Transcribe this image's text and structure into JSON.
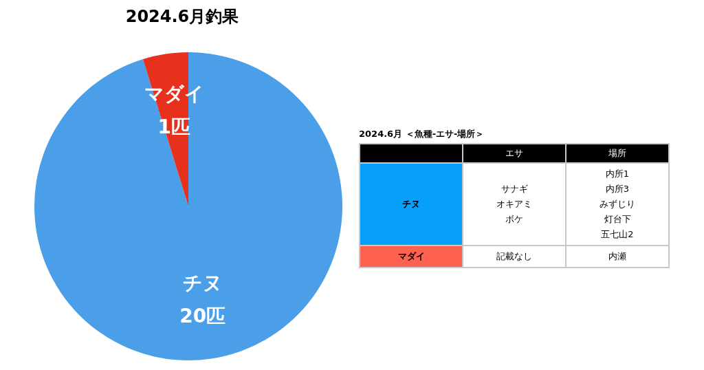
{
  "chart_data": [
    {
      "type": "pie",
      "title": "2024.6月釣果",
      "categories": [
        "チヌ",
        "マダイ"
      ],
      "values": [
        20,
        1
      ],
      "colors": [
        "#4a9fe8",
        "#e8311c"
      ],
      "value_labels": [
        "20匹",
        "1匹"
      ],
      "legend": false
    },
    {
      "type": "other",
      "title": "2024.6月 ＜魚種-エサ-場所＞",
      "categories": [
        "エサ",
        "場所"
      ],
      "y_categories": [
        "チヌ",
        "マダイ"
      ],
      "cell_labels": [
        [
          [
            "サナギ",
            "オキアミ",
            "ボケ"
          ],
          [
            "内所1",
            "内所3",
            "みずじり",
            "灯台下",
            "五七山2"
          ]
        ],
        [
          [
            "記載なし"
          ],
          [
            "内瀬"
          ]
        ]
      ]
    }
  ]
}
